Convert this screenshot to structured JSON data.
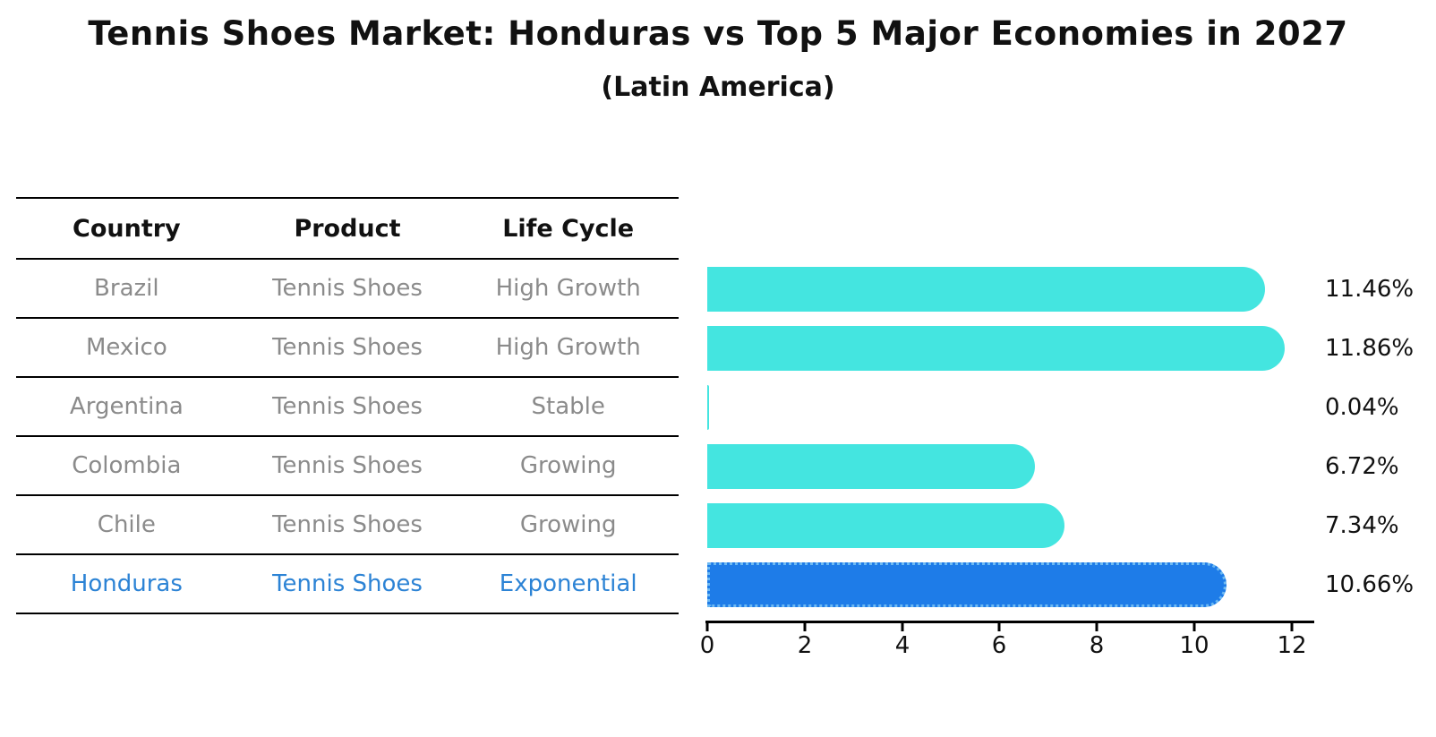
{
  "title": "Tennis Shoes Market: Honduras vs Top 5 Major Economies in 2027",
  "subtitle": "(Latin America)",
  "table": {
    "headers": [
      "Country",
      "Product",
      "Life Cycle"
    ],
    "rows": [
      {
        "country": "Brazil",
        "product": "Tennis Shoes",
        "life_cycle": "High Growth",
        "highlight": false
      },
      {
        "country": "Mexico",
        "product": "Tennis Shoes",
        "life_cycle": "High Growth",
        "highlight": false
      },
      {
        "country": "Argentina",
        "product": "Tennis Shoes",
        "life_cycle": "Stable",
        "highlight": false
      },
      {
        "country": "Colombia",
        "product": "Tennis Shoes",
        "life_cycle": "Growing",
        "highlight": false
      },
      {
        "country": "Chile",
        "product": "Tennis Shoes",
        "life_cycle": "Growing",
        "highlight": false
      },
      {
        "country": "Honduras",
        "product": "Tennis Shoes",
        "life_cycle": "Exponential",
        "highlight": true
      }
    ]
  },
  "chart_data": {
    "type": "bar",
    "orientation": "horizontal",
    "title": "Tennis Shoes Market: Honduras vs Top 5 Major Economies in 2027",
    "subtitle": "(Latin America)",
    "categories": [
      "Brazil",
      "Mexico",
      "Argentina",
      "Colombia",
      "Chile",
      "Honduras"
    ],
    "values": [
      11.46,
      11.86,
      0.04,
      6.72,
      7.34,
      10.66
    ],
    "value_labels": [
      "11.46%",
      "11.86%",
      "0.04%",
      "6.72%",
      "7.34%",
      "10.66%"
    ],
    "unit": "%",
    "x_ticks": [
      0,
      2,
      4,
      6,
      8,
      10,
      12
    ],
    "xlim": [
      0,
      12.5
    ],
    "grid": false,
    "legend": "none",
    "highlighted_category": "Honduras",
    "colors": {
      "bar": "#44e5e0",
      "highlight_bar": "#1e7ce8",
      "highlight_bar_edge": "#6db9f2",
      "highlight_text": "#2c83d5",
      "table_text": "#8b8b8b",
      "text": "#111111"
    }
  }
}
